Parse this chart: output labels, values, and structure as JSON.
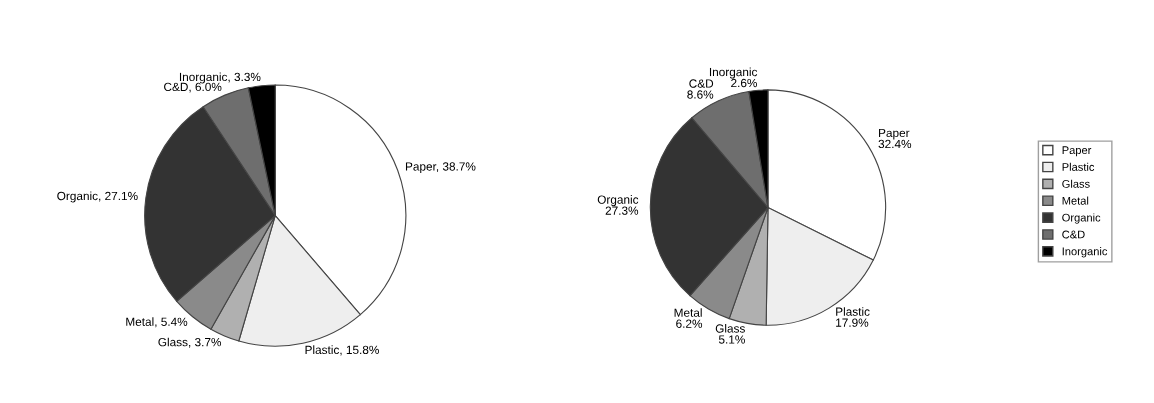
{
  "chart_data": [
    {
      "type": "pie",
      "categories": [
        "Paper",
        "Plastic",
        "Glass",
        "Metal",
        "Organic",
        "C&D",
        "Inorganic"
      ],
      "values": [
        38.7,
        15.8,
        3.7,
        5.4,
        27.1,
        6.0,
        3.3
      ],
      "colors": [
        "#ffffff",
        "#eeeeee",
        "#b0b0b0",
        "#8a8a8a",
        "#333333",
        "#6e6e6e",
        "#000000"
      ],
      "value_labels": [
        "Paper, 38.7%",
        "Plastic, 15.8%",
        "Glass, 3.7%",
        "Metal, 5.4%",
        "Organic, 27.1%",
        "C&D, 6.0%",
        "Inorganic, 3.3%"
      ],
      "legend": "right"
    },
    {
      "type": "pie",
      "categories": [
        "Paper",
        "Plastic",
        "Glass",
        "Metal",
        "Organic",
        "C&D",
        "Inorganic"
      ],
      "values": [
        32.4,
        17.9,
        5.1,
        6.2,
        27.3,
        8.6,
        2.6
      ],
      "colors": [
        "#ffffff",
        "#eeeeee",
        "#b0b0b0",
        "#8a8a8a",
        "#333333",
        "#6e6e6e",
        "#000000"
      ],
      "value_labels": [
        "32.4%",
        "17.9%",
        "5.1%",
        "6.2%",
        "27.3%",
        "8.6%",
        "2.6%"
      ]
    }
  ]
}
